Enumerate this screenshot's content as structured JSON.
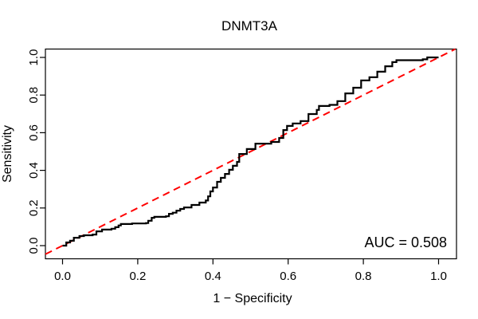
{
  "figure": {
    "background": "#ffffff",
    "frame_color": "#000000"
  },
  "chart_data": {
    "type": "line",
    "subtype": "roc-curve",
    "title": "DNMT3A",
    "xlabel": "1 − Specificity",
    "ylabel": "Sensitivity",
    "annotation": "AUC = 0.508",
    "auc_value": 0.508,
    "xlim": [
      0.0,
      1.0
    ],
    "ylim": [
      0.0,
      1.0
    ],
    "x_ticks": [
      "0.0",
      "0.2",
      "0.4",
      "0.6",
      "0.8",
      "1.0"
    ],
    "y_ticks": [
      "0.0",
      "0.2",
      "0.4",
      "0.6",
      "0.8",
      "1.0"
    ],
    "grid": false,
    "legend": "none",
    "series": [
      {
        "name": "ROC curve",
        "color": "#000000",
        "line_style": "solid",
        "draw": "step",
        "points": [
          [
            0.0,
            0.0
          ],
          [
            0.01,
            0.017
          ],
          [
            0.02,
            0.026
          ],
          [
            0.03,
            0.042
          ],
          [
            0.045,
            0.051
          ],
          [
            0.057,
            0.055
          ],
          [
            0.08,
            0.059
          ],
          [
            0.09,
            0.076
          ],
          [
            0.105,
            0.085
          ],
          [
            0.13,
            0.09
          ],
          [
            0.14,
            0.098
          ],
          [
            0.149,
            0.107
          ],
          [
            0.155,
            0.115
          ],
          [
            0.185,
            0.118
          ],
          [
            0.222,
            0.12
          ],
          [
            0.228,
            0.132
          ],
          [
            0.237,
            0.148
          ],
          [
            0.244,
            0.153
          ],
          [
            0.275,
            0.156
          ],
          [
            0.283,
            0.169
          ],
          [
            0.293,
            0.175
          ],
          [
            0.303,
            0.186
          ],
          [
            0.313,
            0.195
          ],
          [
            0.323,
            0.203
          ],
          [
            0.343,
            0.216
          ],
          [
            0.364,
            0.229
          ],
          [
            0.381,
            0.24
          ],
          [
            0.387,
            0.262
          ],
          [
            0.393,
            0.288
          ],
          [
            0.4,
            0.309
          ],
          [
            0.411,
            0.339
          ],
          [
            0.421,
            0.36
          ],
          [
            0.432,
            0.381
          ],
          [
            0.443,
            0.403
          ],
          [
            0.453,
            0.424
          ],
          [
            0.464,
            0.445
          ],
          [
            0.47,
            0.487
          ],
          [
            0.49,
            0.513
          ],
          [
            0.513,
            0.542
          ],
          [
            0.555,
            0.551
          ],
          [
            0.576,
            0.572
          ],
          [
            0.587,
            0.614
          ],
          [
            0.597,
            0.636
          ],
          [
            0.612,
            0.649
          ],
          [
            0.633,
            0.662
          ],
          [
            0.654,
            0.699
          ],
          [
            0.676,
            0.721
          ],
          [
            0.682,
            0.742
          ],
          [
            0.71,
            0.748
          ],
          [
            0.731,
            0.768
          ],
          [
            0.752,
            0.809
          ],
          [
            0.773,
            0.839
          ],
          [
            0.794,
            0.878
          ],
          [
            0.816,
            0.895
          ],
          [
            0.837,
            0.924
          ],
          [
            0.858,
            0.953
          ],
          [
            0.877,
            0.975
          ],
          [
            0.888,
            0.985
          ],
          [
            0.958,
            0.99
          ],
          [
            0.97,
            1.0
          ],
          [
            1.0,
            1.0
          ]
        ]
      },
      {
        "name": "chance line",
        "color": "#FF0000",
        "line_style": "dashed",
        "draw": "line",
        "points": [
          [
            0.0,
            0.0
          ],
          [
            1.0,
            1.0
          ]
        ]
      }
    ]
  }
}
